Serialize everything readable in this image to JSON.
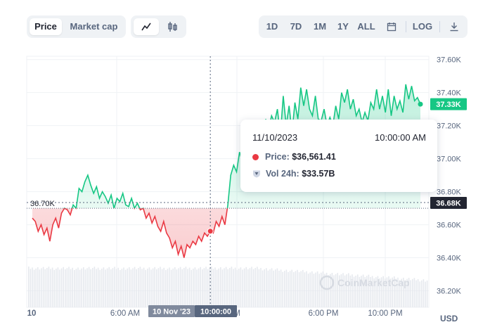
{
  "toolbar": {
    "metric_tabs": [
      {
        "label": "Price",
        "active": true
      },
      {
        "label": "Market cap",
        "active": false
      }
    ],
    "chart_types": [
      {
        "icon": "line-chart-icon",
        "active": true
      },
      {
        "icon": "candlestick-icon",
        "active": false
      }
    ],
    "ranges": [
      "1D",
      "7D",
      "1M",
      "1Y",
      "ALL"
    ],
    "calendar_icon": "calendar-icon",
    "log_label": "LOG",
    "download_icon": "download-icon"
  },
  "tooltip": {
    "date": "11/10/2023",
    "time": "10:00:00 AM",
    "price_label": "Price:",
    "price_value": "$36,561.41",
    "vol_label": "Vol 24h:",
    "vol_value": "$33.57B"
  },
  "reference_label": "36.70K",
  "current_price_tag": "37.33K",
  "hover_price_tag": "36.68K",
  "crosshair_date_tag": "10 Nov '23",
  "crosshair_time_tag": "10:00:00",
  "currency": "USD",
  "watermark": "CoinMarketCap",
  "colors": {
    "up": "#16c784",
    "down": "#ea3943",
    "tag_gray": "#808a9d"
  },
  "chart_data": {
    "type": "line",
    "x_ticks": [
      "10",
      "6:00 AM",
      "M",
      "6:00 PM",
      "10:00 PM"
    ],
    "y_ticks": [
      "37.60K",
      "37.40K",
      "37.20K",
      "37.00K",
      "36.80K",
      "36.60K",
      "36.40K",
      "36.20K"
    ],
    "ylim": [
      36100,
      37620
    ],
    "baseline": 36700,
    "series": [
      {
        "values": [
          36640,
          36620,
          36560,
          36600,
          36540,
          36580,
          36500,
          36600,
          36640,
          36580,
          36670,
          36700,
          36690,
          36660,
          36720,
          36700,
          36820,
          36800,
          36860,
          36900,
          36840,
          36790,
          36830,
          36760,
          36800,
          36770,
          36730,
          36780,
          36700,
          36760,
          36740,
          36790,
          36720,
          36710,
          36760,
          36700,
          36730,
          36690,
          36700,
          36640,
          36670,
          36610,
          36650,
          36590,
          36560,
          36620,
          36550,
          36520,
          36460,
          36500,
          36420,
          36470,
          36400,
          36480,
          36460,
          36500,
          36480,
          36530,
          36500,
          36550,
          36530,
          36561,
          36550,
          36620,
          36590,
          36650,
          36600,
          36720,
          36900,
          36960,
          36920,
          37040,
          36980,
          37060,
          37110,
          36980,
          37120,
          37040,
          37160,
          37100,
          37240,
          37180,
          37260,
          37220,
          37300,
          37140,
          37380,
          37200,
          37320,
          37160,
          37340,
          37240,
          37430,
          37320,
          37420,
          37300,
          37260,
          37380,
          37240,
          37230,
          37300,
          37200,
          37250,
          37200,
          37320,
          37240,
          37400,
          37340,
          37420,
          37300,
          37360,
          37260,
          37300,
          37220,
          37280,
          37230,
          37340,
          37300,
          37420,
          37300,
          37380,
          37280,
          37420,
          37260,
          37380,
          37300,
          37350,
          37280,
          37450,
          37360,
          37440,
          37350,
          37370,
          37330
        ]
      }
    ]
  }
}
